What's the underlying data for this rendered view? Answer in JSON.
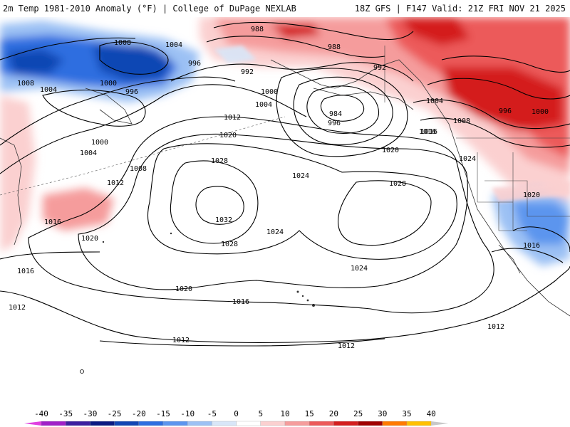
{
  "header": {
    "title": "2m Temp 1981-2010 Anomaly (°F) | College of DuPage NEXLAB",
    "run_info": "18Z GFS | F147 Valid: 21Z FRI NOV 21 2025"
  },
  "map": {
    "isobar_labels": [
      "988",
      "988",
      "1008",
      "1004",
      "996",
      "992",
      "1008",
      "1004",
      "1000",
      "996",
      "1000",
      "1004",
      "992",
      "984",
      "996",
      "1012",
      "1020",
      "1000",
      "1004",
      "1008",
      "1012",
      "1028",
      "1024",
      "1028",
      "1032",
      "1024",
      "1028",
      "1020",
      "1016",
      "1024",
      "1020",
      "1016",
      "1008",
      "1004",
      "996",
      "1000",
      "1016",
      "1024",
      "1020",
      "1016",
      "1020",
      "1016",
      "1012",
      "1012",
      "1012",
      "1012",
      "1016"
    ]
  },
  "legend": {
    "ticks": [
      "-40",
      "-35",
      "-30",
      "-25",
      "-20",
      "-15",
      "-10",
      "-5",
      "0",
      "5",
      "10",
      "15",
      "20",
      "25",
      "30",
      "35",
      "40"
    ],
    "colors": [
      "#e040e0",
      "#a020c8",
      "#3c1fa0",
      "#0a1a82",
      "#1146b4",
      "#2d6ee0",
      "#5c95ee",
      "#9cc1f4",
      "#d8e6f8",
      "#ffffff",
      "#fbd0d0",
      "#f59c9c",
      "#ec5a5a",
      "#d41e1e",
      "#a00000",
      "#ff7a00",
      "#ffc000",
      "#c8c8c8"
    ]
  }
}
